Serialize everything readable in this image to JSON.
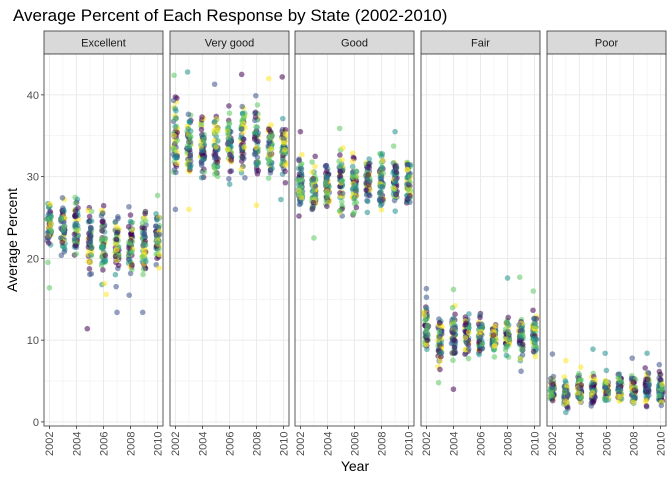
{
  "chart_data": {
    "type": "scatter",
    "title": "Average Percent of Each Response by State (2002-2010)",
    "xlabel": "Year",
    "ylabel": "Average Percent",
    "xlim": [
      2001.6,
      2010.4
    ],
    "ylim": [
      -0.5,
      45
    ],
    "x_ticks": [
      2002,
      2004,
      2006,
      2008,
      2010
    ],
    "y_ticks": [
      0,
      10,
      20,
      30,
      40
    ],
    "grid": true,
    "legend": "none",
    "point_opacity": 0.55,
    "color_scale": "viridis",
    "colors": [
      "#440154",
      "#3b528b",
      "#21908c",
      "#5dc863",
      "#fde725"
    ],
    "panels": [
      {
        "name": "Excellent",
        "years": [
          2002,
          2003,
          2004,
          2005,
          2006,
          2007,
          2008,
          2009,
          2010
        ],
        "ranges": [
          [
            18.2,
            29.5
          ],
          [
            18.5,
            29.0
          ],
          [
            18.0,
            28.5
          ],
          [
            16.5,
            27.5
          ],
          [
            16.0,
            27.8
          ],
          [
            15.8,
            27.0
          ],
          [
            16.0,
            27.2
          ],
          [
            16.5,
            27.5
          ],
          [
            16.3,
            27.5
          ]
        ],
        "outliers": [
          [
            2002,
            16.4
          ],
          [
            2004.8,
            11.4
          ],
          [
            2006.2,
            15.6
          ],
          [
            2007,
            13.4
          ],
          [
            2008.9,
            13.4
          ],
          [
            2007.9,
            15.5
          ],
          [
            2010,
            27.7
          ]
        ]
      },
      {
        "name": "Very good",
        "years": [
          2002,
          2003,
          2004,
          2005,
          2006,
          2007,
          2008,
          2009,
          2010
        ],
        "ranges": [
          [
            26.5,
            41.5
          ],
          [
            28.0,
            39.5
          ],
          [
            28.5,
            39.0
          ],
          [
            28.0,
            38.8
          ],
          [
            28.5,
            39.5
          ],
          [
            29.0,
            40.5
          ],
          [
            28.5,
            40.5
          ],
          [
            28.2,
            39.5
          ],
          [
            27.8,
            39.8
          ]
        ],
        "outliers": [
          [
            2002,
            26.0
          ],
          [
            2001.9,
            42.4
          ],
          [
            2002.9,
            42.8
          ],
          [
            2003,
            26.0
          ],
          [
            2004.9,
            41.3
          ],
          [
            2006.9,
            42.5
          ],
          [
            2008,
            26.5
          ],
          [
            2008.9,
            42.0
          ],
          [
            2009.9,
            42.2
          ],
          [
            2009.8,
            27.2
          ]
        ]
      },
      {
        "name": "Good",
        "years": [
          2002,
          2003,
          2004,
          2005,
          2006,
          2007,
          2008,
          2009,
          2010
        ],
        "ranges": [
          [
            24.0,
            34.0
          ],
          [
            23.5,
            33.5
          ],
          [
            24.5,
            33.5
          ],
          [
            23.8,
            34.5
          ],
          [
            24.0,
            34.0
          ],
          [
            24.5,
            34.0
          ],
          [
            25.0,
            34.5
          ],
          [
            24.8,
            34.5
          ],
          [
            24.5,
            34.0
          ]
        ],
        "outliers": [
          [
            2002,
            35.5
          ],
          [
            2003,
            22.5
          ],
          [
            2004.9,
            35.9
          ],
          [
            2009,
            35.5
          ]
        ]
      },
      {
        "name": "Fair",
        "years": [
          2002,
          2003,
          2004,
          2005,
          2006,
          2007,
          2008,
          2009,
          2010
        ],
        "ranges": [
          [
            6.5,
            15.5
          ],
          [
            5.5,
            14.0
          ],
          [
            6.0,
            15.0
          ],
          [
            7.0,
            14.0
          ],
          [
            7.0,
            14.0
          ],
          [
            7.0,
            13.5
          ],
          [
            7.5,
            13.5
          ],
          [
            6.5,
            14.0
          ],
          [
            7.0,
            14.5
          ]
        ],
        "outliers": [
          [
            2002,
            16.3
          ],
          [
            2002.9,
            4.8
          ],
          [
            2004,
            4.0
          ],
          [
            2004,
            16.2
          ],
          [
            2008,
            17.6
          ],
          [
            2008.9,
            17.7
          ],
          [
            2009.9,
            16.0
          ],
          [
            2009,
            6.2
          ]
        ]
      },
      {
        "name": "Poor",
        "years": [
          2002,
          2003,
          2004,
          2005,
          2006,
          2007,
          2008,
          2009,
          2010
        ],
        "ranges": [
          [
            1.5,
            6.5
          ],
          [
            1.0,
            6.0
          ],
          [
            1.3,
            6.5
          ],
          [
            1.3,
            6.5
          ],
          [
            1.5,
            6.5
          ],
          [
            1.5,
            6.5
          ],
          [
            1.3,
            6.5
          ],
          [
            1.3,
            7.0
          ],
          [
            1.3,
            6.5
          ]
        ],
        "outliers": [
          [
            2002,
            8.3
          ],
          [
            2003,
            7.5
          ],
          [
            2004.1,
            6.7
          ],
          [
            2005,
            8.9
          ],
          [
            2005.9,
            8.4
          ],
          [
            2007.9,
            7.8
          ],
          [
            2009,
            8.4
          ],
          [
            2009.9,
            7.0
          ]
        ]
      }
    ]
  }
}
